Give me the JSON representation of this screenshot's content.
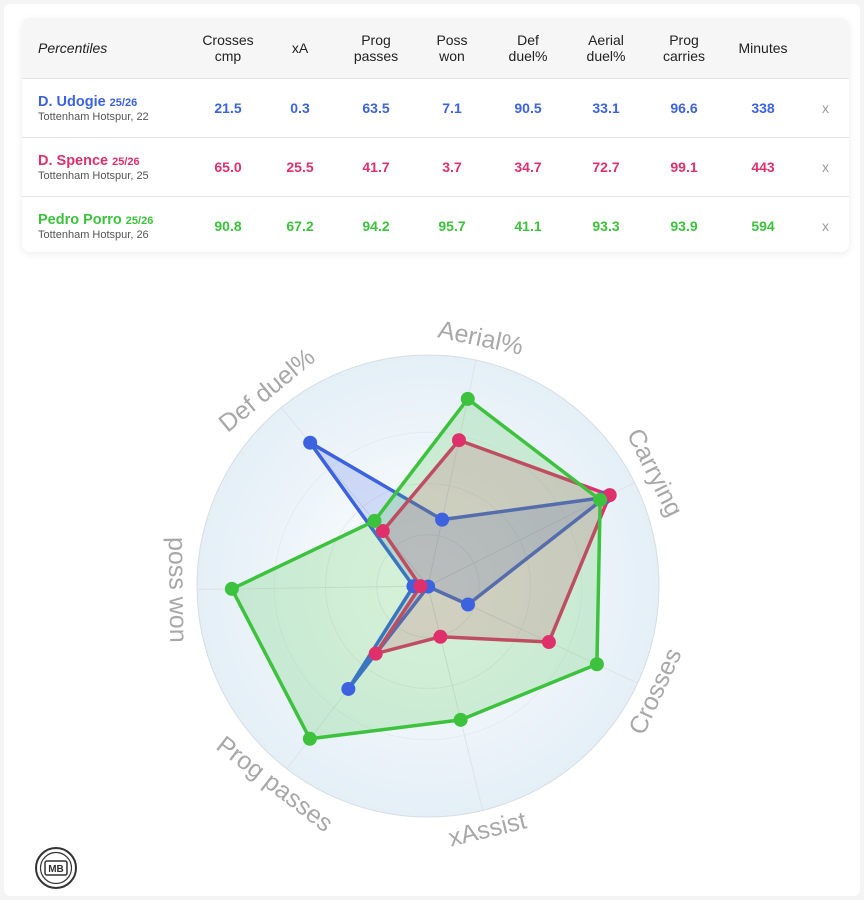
{
  "table": {
    "corner_label": "Percentiles",
    "columns": [
      [
        "Crosses",
        "cmp"
      ],
      [
        "xA",
        ""
      ],
      [
        "Prog",
        "passes"
      ],
      [
        "Poss",
        "won"
      ],
      [
        "Def",
        "duel%"
      ],
      [
        "Aerial",
        "duel%"
      ],
      [
        "Prog",
        "carries"
      ],
      [
        "Minutes",
        ""
      ]
    ],
    "remove_label": "x",
    "players": [
      {
        "name": "D. Udogie",
        "season": "25/26",
        "club": "Tottenham Hotspur, 22",
        "color": "#3c62e0",
        "values": [
          "21.5",
          "0.3",
          "63.5",
          "7.1",
          "90.5",
          "33.1",
          "96.6",
          "338"
        ]
      },
      {
        "name": "D. Spence",
        "season": "25/26",
        "club": "Tottenham Hotspur, 25",
        "color": "#e0306c",
        "values": [
          "65.0",
          "25.5",
          "41.7",
          "3.7",
          "34.7",
          "72.7",
          "99.1",
          "443"
        ]
      },
      {
        "name": "Pedro Porro",
        "season": "25/26",
        "club": "Tottenham Hotspur, 26",
        "color": "#3dc23d",
        "values": [
          "90.8",
          "67.2",
          "94.2",
          "95.7",
          "41.1",
          "93.3",
          "93.9",
          "594"
        ]
      }
    ]
  },
  "chart_data": {
    "type": "radar",
    "axes": [
      "Aerial%",
      "Carrying",
      "Crosses",
      "xAssist",
      "Prog passes",
      "poss won",
      "Def duel%"
    ],
    "range": [
      0,
      100
    ],
    "series": [
      {
        "name": "D. Udogie",
        "color": "#3c62e0",
        "values": [
          33.1,
          96.6,
          21.5,
          0.3,
          63.5,
          7.1,
          90.5
        ]
      },
      {
        "name": "D. Spence",
        "color": "#e0306c",
        "values": [
          72.7,
          99.1,
          65.0,
          25.5,
          41.7,
          3.7,
          34.7
        ]
      },
      {
        "name": "Pedro Porro",
        "color": "#3dc23d",
        "values": [
          93.3,
          93.9,
          90.8,
          67.2,
          94.2,
          95.7,
          41.1
        ]
      }
    ]
  },
  "logo": {
    "text": "MB"
  }
}
